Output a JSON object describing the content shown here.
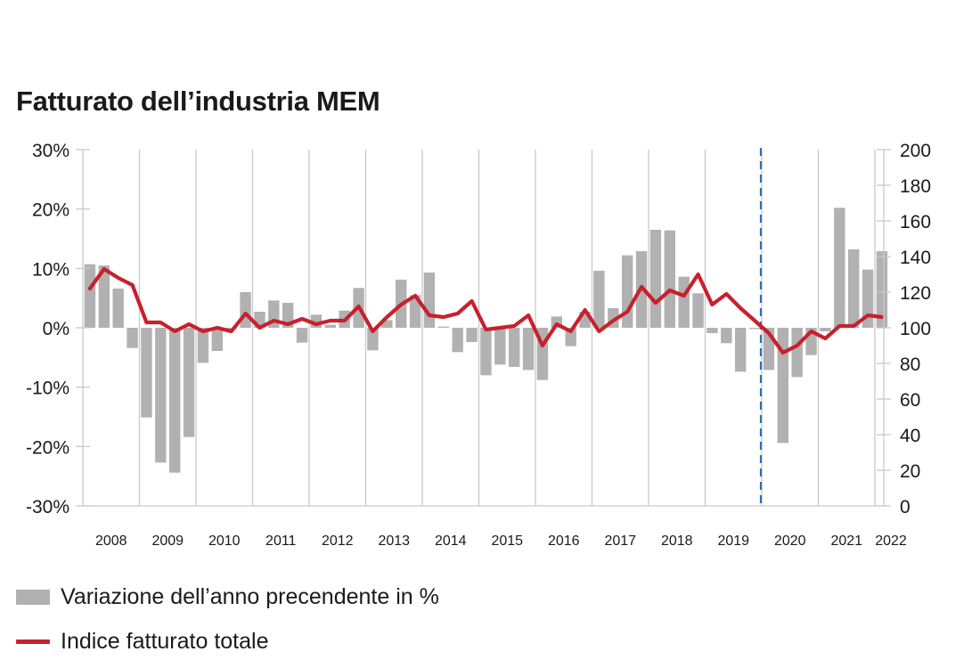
{
  "chart_data": {
    "type": "bar+line",
    "title": "Fatturato dell’industria MEM",
    "y_left": {
      "ticks": [
        "30%",
        "20%",
        "10%",
        "0%",
        "-10%",
        "-20%",
        "-30%"
      ],
      "range": [
        -30,
        30
      ]
    },
    "y_right": {
      "ticks": [
        "200",
        "180",
        "160",
        "140",
        "120",
        "100",
        "80",
        "60",
        "40",
        "20",
        "0"
      ],
      "range": [
        0,
        200
      ]
    },
    "x_labels": [
      "2008",
      "2009",
      "2010",
      "2011",
      "2012",
      "2013",
      "2014",
      "2015",
      "2016",
      "2017",
      "2018",
      "2019",
      "2020",
      "2021",
      "2022"
    ],
    "quarters_per_year": 4,
    "start": "2008 Q1",
    "forecast_divider_after_quarter_index": 47,
    "grid": "vertical lines at year boundaries",
    "series": [
      {
        "name": "Variazione dell’anno precendente in %",
        "type": "bar",
        "axis": "left",
        "color": "#b1b1b1",
        "values": [
          10.7,
          10.5,
          6.6,
          -3.4,
          -15.1,
          -22.7,
          -24.4,
          -18.4,
          -5.9,
          -3.9,
          -0.2,
          6.0,
          2.7,
          4.6,
          4.2,
          -2.5,
          2.2,
          0.5,
          2.9,
          6.7,
          -3.8,
          1.3,
          8.1,
          5.5,
          9.3,
          0.2,
          -4.1,
          -2.4,
          -8.0,
          -6.2,
          -6.6,
          -7.1,
          -8.8,
          1.9,
          -3.1,
          2.7,
          9.6,
          3.3,
          12.2,
          12.9,
          16.5,
          16.4,
          8.6,
          5.8,
          -0.9,
          -2.6,
          -7.4,
          -0.2,
          -7.1,
          -19.4,
          -8.3,
          -4.6,
          -0.6,
          20.2,
          13.2,
          9.8,
          12.9
        ]
      },
      {
        "name": "Indice fatturato totale",
        "type": "line",
        "axis": "right",
        "color": "#c8202d",
        "values": [
          122,
          133,
          128,
          124,
          103,
          103,
          98,
          102,
          98,
          100,
          98,
          108,
          100,
          104,
          102,
          105,
          102,
          104,
          104,
          112,
          98,
          106,
          113,
          118,
          107,
          106,
          108,
          115,
          99,
          100,
          101,
          107,
          90,
          102,
          98,
          110,
          98,
          104,
          109,
          123,
          114,
          121,
          118,
          130,
          113,
          119,
          111,
          104,
          97,
          86,
          90,
          98,
          94,
          101,
          101,
          107,
          106
        ]
      }
    ]
  },
  "legend": [
    {
      "label": "Variazione dell’anno precendente in %"
    },
    {
      "label": "Indice fatturato totale"
    }
  ]
}
